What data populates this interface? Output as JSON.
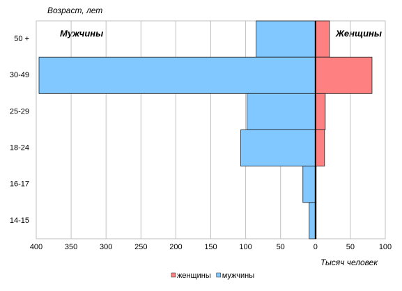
{
  "chart_data": {
    "type": "bar",
    "orientation": "horizontal",
    "y_label": "Возраст, лет",
    "x_label": "Тысяч человек",
    "annotations": [
      "Мужчины",
      "Женщины"
    ],
    "categories": [
      "50 +",
      "30-49",
      "25-29",
      "18-24",
      "16-17",
      "14-15"
    ],
    "series": [
      {
        "name": "женщины",
        "color": "#ff8080",
        "values": [
          20,
          81,
          14,
          13,
          1,
          1
        ]
      },
      {
        "name": "мужчины",
        "color": "#80c8ff",
        "values": [
          -85,
          -396,
          -98,
          -107,
          -18,
          -9
        ]
      }
    ],
    "xlim": [
      -400,
      100
    ],
    "xticks": [
      {
        "value": -400,
        "label": "400"
      },
      {
        "value": -350,
        "label": "350"
      },
      {
        "value": -300,
        "label": "300"
      },
      {
        "value": -250,
        "label": "250"
      },
      {
        "value": -200,
        "label": "200"
      },
      {
        "value": -150,
        "label": "150"
      },
      {
        "value": -100,
        "label": "100"
      },
      {
        "value": -50,
        "label": "50"
      },
      0,
      50,
      100
    ],
    "grid": true,
    "legend": "bottom"
  }
}
